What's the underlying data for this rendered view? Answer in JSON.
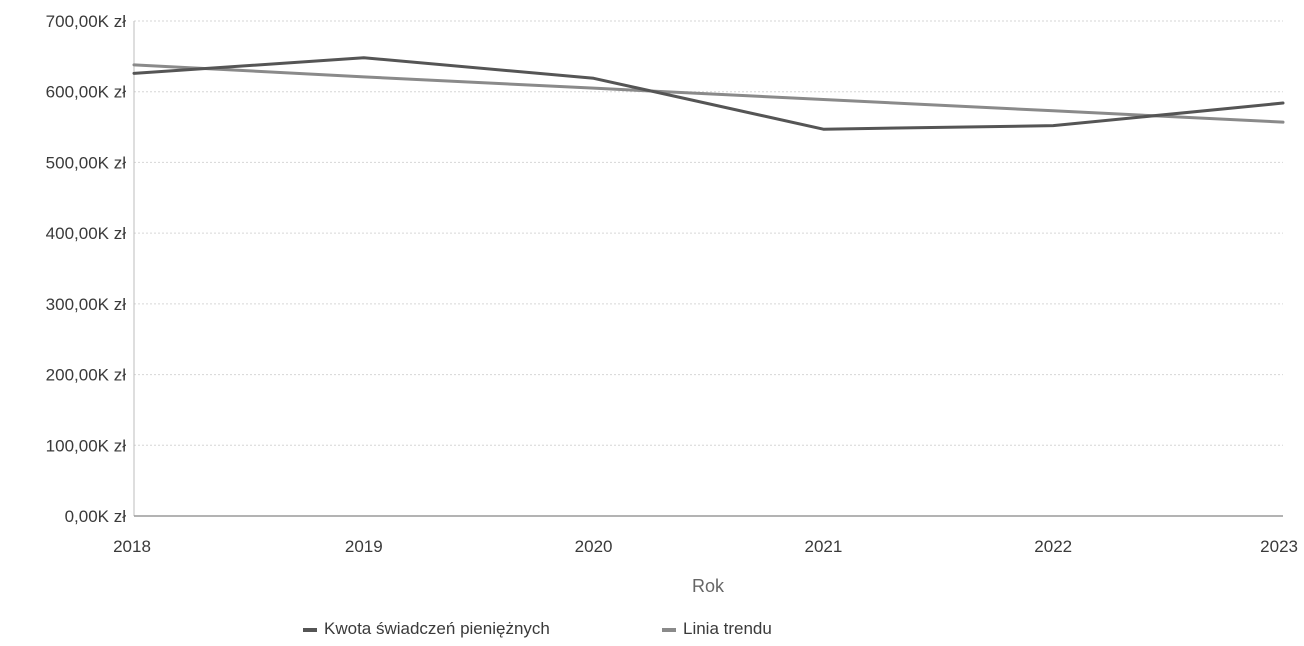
{
  "chart_data": {
    "type": "line",
    "title": "",
    "xlabel": "Rok",
    "ylabel": "",
    "categories": [
      "2018",
      "2019",
      "2020",
      "2021",
      "2022",
      "2023"
    ],
    "ylim": [
      0,
      700000
    ],
    "y_ticks": [
      0,
      100000,
      200000,
      300000,
      400000,
      500000,
      600000,
      700000
    ],
    "y_tick_labels": [
      "0,00K zł",
      "100,00K zł",
      "200,00K zł",
      "300,00K zł",
      "400,00K zł",
      "500,00K zł",
      "600,00K zł",
      "700,00K zł"
    ],
    "grid": true,
    "legend_position": "bottom",
    "series": [
      {
        "name": "Kwota świadczeń pieniężnych",
        "color": "#555555",
        "values": [
          626000,
          648000,
          619000,
          547000,
          552000,
          584000
        ]
      },
      {
        "name": "Linia trendu",
        "color": "#8a8a8a",
        "values": [
          638000,
          621000,
          605000,
          589000,
          573000,
          557000
        ]
      }
    ]
  }
}
